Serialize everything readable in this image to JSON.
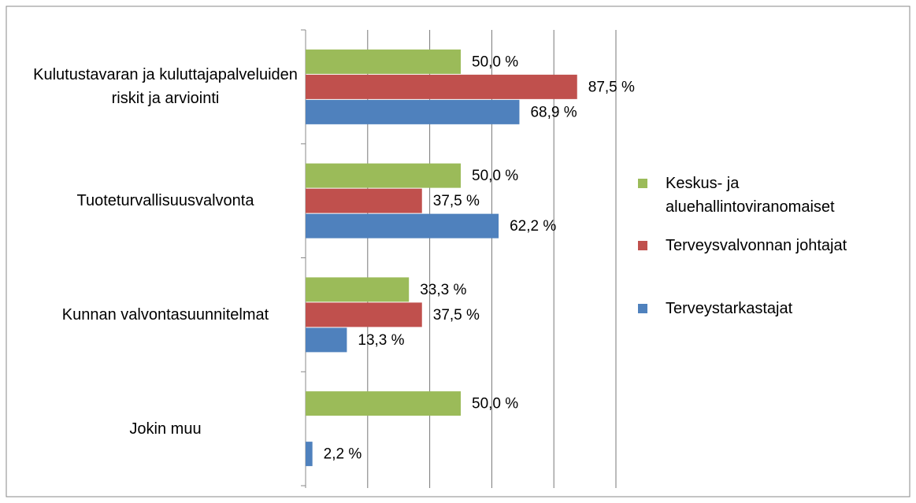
{
  "chart_data": {
    "type": "bar",
    "orientation": "horizontal",
    "categories": [
      "Kulutustavaran ja kuluttajapalveluiden riskit ja arviointi",
      "Tuoteturvallisuusvalvonta",
      "Kunnan valvontasuunnitelmat",
      "Jokin muu"
    ],
    "series": [
      {
        "name": "Keskus- ja aluehallintoviranomaiset",
        "color": "#9bbb59",
        "values": [
          50.0,
          50.0,
          33.3,
          50.0
        ],
        "value_labels": [
          "50,0 %",
          "50,0 %",
          "33,3 %",
          "50,0 %"
        ]
      },
      {
        "name": "Terveysvalvonnan johtajat",
        "color": "#c0504d",
        "values": [
          87.5,
          37.5,
          37.5,
          null
        ],
        "value_labels": [
          "87,5 %",
          "37,5 %",
          "37,5 %",
          null
        ]
      },
      {
        "name": "Terveystarkastajat",
        "color": "#4f81bd",
        "values": [
          68.9,
          62.2,
          13.3,
          2.2
        ],
        "value_labels": [
          "68,9 %",
          "62,2 %",
          "13,3 %",
          "2,2 %"
        ]
      }
    ],
    "xlim": [
      0,
      100
    ],
    "xticks": [
      0,
      20,
      40,
      60,
      80,
      100
    ],
    "grid": true,
    "legend": "right"
  }
}
